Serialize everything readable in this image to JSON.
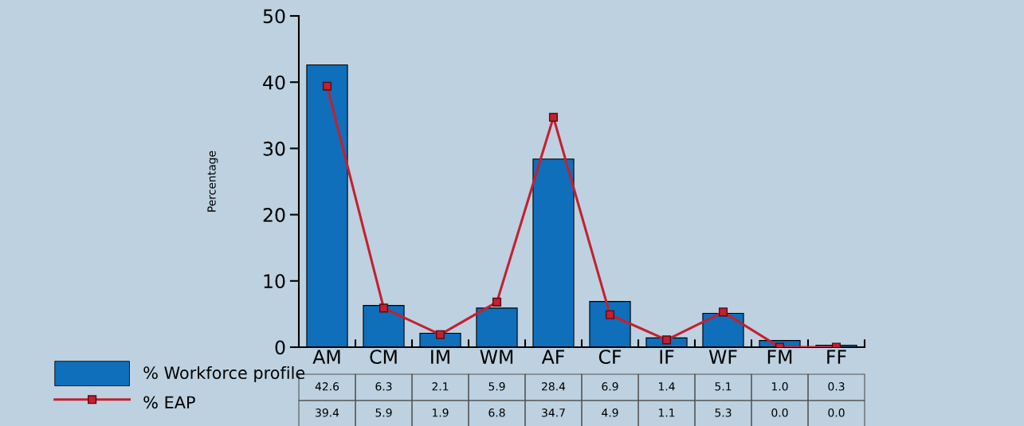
{
  "chart_data": {
    "type": "bar",
    "ylabel": "Percentage",
    "categories": [
      "AM",
      "CM",
      "IM",
      "WM",
      "AF",
      "CF",
      "IF",
      "WF",
      "FM",
      "FF"
    ],
    "series": [
      {
        "name": "% Workforce profile",
        "color": "#0f6fba",
        "values": [
          42.6,
          6.3,
          2.1,
          5.9,
          28.4,
          6.9,
          1.4,
          5.1,
          1.0,
          0.3
        ],
        "value_labels": [
          "42.6",
          "6.3",
          "2.1",
          "5.9",
          "28.4",
          "6.9",
          "1.4",
          "5.1",
          "1.0",
          "0.3"
        ]
      },
      {
        "name": "% EAP",
        "type": "line",
        "color": "#c4202f",
        "values": [
          39.4,
          5.9,
          1.9,
          6.8,
          34.7,
          4.9,
          1.1,
          5.3,
          0.0,
          0.0
        ],
        "value_labels": [
          "39.4",
          "5.9",
          "1.9",
          "6.8",
          "34.7",
          "4.9",
          "1.1",
          "5.3",
          "0.0",
          "0.0"
        ]
      }
    ],
    "ylim": [
      0,
      50
    ],
    "yticks": [
      0,
      10,
      20,
      30,
      40,
      50
    ],
    "legend": "bottom left",
    "marker": "square",
    "line_style": "solid",
    "grid": false
  }
}
